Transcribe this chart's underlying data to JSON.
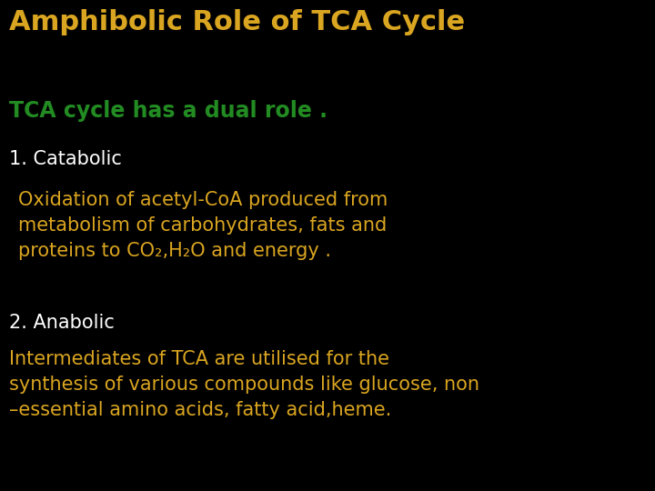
{
  "background_color": "#000000",
  "title": "Amphibolic Role of TCA Cycle",
  "title_color": "#DAA520",
  "title_fontsize": 22,
  "subtitle": "TCA cycle has a dual role .",
  "subtitle_color": "#228B22",
  "subtitle_fontsize": 17,
  "line1_text": "1. Catabolic",
  "line1_color": "#FFFFFF",
  "line1_fontsize": 15,
  "line2_text": "Oxidation of acetyl-CoA produced from\nmetabolism of carbohydrates, fats and\nproteins to CO₂,H₂O and energy .",
  "line2_color": "#DAA520",
  "line2_fontsize": 15,
  "line3_text": "2. Anabolic",
  "line3_color": "#FFFFFF",
  "line3_fontsize": 15,
  "line4_text": "Intermediates of TCA are utilised for the\nsynthesis of various compounds like glucose, non\n–essential amino acids, fatty acid,heme.",
  "line4_color": "#DAA520",
  "line4_fontsize": 15
}
